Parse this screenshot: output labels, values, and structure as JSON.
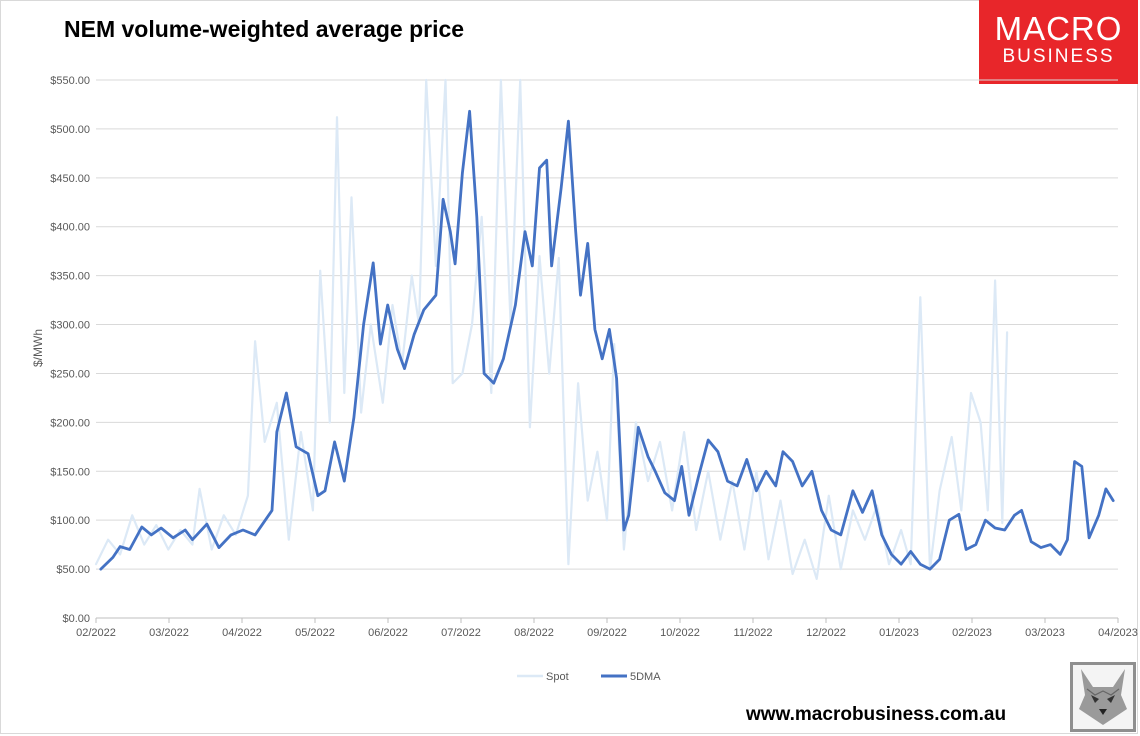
{
  "header": {
    "title": "NEM volume-weighted average price"
  },
  "logo": {
    "line1": "MACRO",
    "line2": "BUSINESS"
  },
  "footer": {
    "website": "www.macrobusiness.com.au",
    "emblem_icon": "wolf-head-icon"
  },
  "chart_data": {
    "type": "line",
    "title": "NEM volume-weighted average price",
    "ylabel": "$/MWh",
    "xlabel": "",
    "ylim": [
      0,
      550
    ],
    "yticks": [
      0,
      50,
      100,
      150,
      200,
      250,
      300,
      350,
      400,
      450,
      500,
      550
    ],
    "ytick_labels": [
      "$0.00",
      "$50.00",
      "$100.00",
      "$150.00",
      "$200.00",
      "$250.00",
      "$300.00",
      "$350.00",
      "$400.00",
      "$450.00",
      "$500.00",
      "$550.00"
    ],
    "xlim": [
      "2022-02-01",
      "2023-04-01"
    ],
    "xtick_labels": [
      "02/2022",
      "03/2022",
      "04/2022",
      "05/2022",
      "06/2022",
      "07/2022",
      "08/2022",
      "09/2022",
      "10/2022",
      "11/2022",
      "12/2022",
      "01/2023",
      "02/2023",
      "03/2023",
      "04/2023"
    ],
    "grid": true,
    "legend_position": "bottom",
    "colors": {
      "Spot": "#dce9f6",
      "5DMA": "#4472c4"
    },
    "series": [
      {
        "name": "Spot",
        "points": [
          [
            "2022-02-01",
            55
          ],
          [
            "2022-02-06",
            80
          ],
          [
            "2022-02-11",
            65
          ],
          [
            "2022-02-16",
            105
          ],
          [
            "2022-02-21",
            75
          ],
          [
            "2022-02-26",
            95
          ],
          [
            "2022-03-03",
            70
          ],
          [
            "2022-03-08",
            90
          ],
          [
            "2022-03-13",
            75
          ],
          [
            "2022-03-16",
            132
          ],
          [
            "2022-03-21",
            70
          ],
          [
            "2022-03-26",
            105
          ],
          [
            "2022-03-31",
            85
          ],
          [
            "2022-04-05",
            125
          ],
          [
            "2022-04-08",
            283
          ],
          [
            "2022-04-12",
            180
          ],
          [
            "2022-04-17",
            220
          ],
          [
            "2022-04-22",
            80
          ],
          [
            "2022-04-27",
            190
          ],
          [
            "2022-05-02",
            110
          ],
          [
            "2022-05-05",
            355
          ],
          [
            "2022-05-09",
            200
          ],
          [
            "2022-05-12",
            512
          ],
          [
            "2022-05-15",
            230
          ],
          [
            "2022-05-18",
            430
          ],
          [
            "2022-05-22",
            210
          ],
          [
            "2022-05-26",
            300
          ],
          [
            "2022-05-31",
            220
          ],
          [
            "2022-06-04",
            320
          ],
          [
            "2022-06-08",
            260
          ],
          [
            "2022-06-12",
            350
          ],
          [
            "2022-06-15",
            300
          ],
          [
            "2022-06-18",
            550
          ],
          [
            "2022-06-22",
            360
          ],
          [
            "2022-06-26",
            550
          ],
          [
            "2022-06-29",
            240
          ],
          [
            "2022-07-03",
            250
          ],
          [
            "2022-07-07",
            300
          ],
          [
            "2022-07-11",
            410
          ],
          [
            "2022-07-15",
            230
          ],
          [
            "2022-07-19",
            550
          ],
          [
            "2022-07-23",
            300
          ],
          [
            "2022-07-27",
            550
          ],
          [
            "2022-07-31",
            195
          ],
          [
            "2022-08-04",
            370
          ],
          [
            "2022-08-08",
            250
          ],
          [
            "2022-08-12",
            368
          ],
          [
            "2022-08-16",
            55
          ],
          [
            "2022-08-20",
            240
          ],
          [
            "2022-08-24",
            120
          ],
          [
            "2022-08-28",
            170
          ],
          [
            "2022-09-01",
            100
          ],
          [
            "2022-09-04",
            280
          ],
          [
            "2022-09-08",
            70
          ],
          [
            "2022-09-13",
            200
          ],
          [
            "2022-09-18",
            140
          ],
          [
            "2022-09-23",
            180
          ],
          [
            "2022-09-28",
            110
          ],
          [
            "2022-10-03",
            190
          ],
          [
            "2022-10-08",
            90
          ],
          [
            "2022-10-13",
            150
          ],
          [
            "2022-10-18",
            80
          ],
          [
            "2022-10-23",
            140
          ],
          [
            "2022-10-28",
            70
          ],
          [
            "2022-11-02",
            150
          ],
          [
            "2022-11-07",
            60
          ],
          [
            "2022-11-12",
            120
          ],
          [
            "2022-11-17",
            45
          ],
          [
            "2022-11-22",
            80
          ],
          [
            "2022-11-27",
            40
          ],
          [
            "2022-12-02",
            125
          ],
          [
            "2022-12-07",
            50
          ],
          [
            "2022-12-12",
            110
          ],
          [
            "2022-12-17",
            80
          ],
          [
            "2022-12-22",
            115
          ],
          [
            "2022-12-27",
            55
          ],
          [
            "2023-01-01",
            90
          ],
          [
            "2023-01-05",
            55
          ],
          [
            "2023-01-09",
            328
          ],
          [
            "2023-01-13",
            50
          ],
          [
            "2023-01-17",
            130
          ],
          [
            "2023-01-22",
            185
          ],
          [
            "2023-01-26",
            110
          ],
          [
            "2023-01-30",
            230
          ],
          [
            "2023-02-03",
            200
          ],
          [
            "2023-02-06",
            110
          ],
          [
            "2023-02-09",
            345
          ],
          [
            "2023-02-12",
            97
          ],
          [
            "2023-02-14",
            292
          ]
        ]
      },
      {
        "name": "5DMA",
        "points": [
          [
            "2022-02-03",
            50
          ],
          [
            "2022-02-08",
            62
          ],
          [
            "2022-02-11",
            73
          ],
          [
            "2022-02-15",
            70
          ],
          [
            "2022-02-20",
            93
          ],
          [
            "2022-02-24",
            85
          ],
          [
            "2022-02-28",
            92
          ],
          [
            "2022-03-05",
            82
          ],
          [
            "2022-03-10",
            90
          ],
          [
            "2022-03-13",
            80
          ],
          [
            "2022-03-19",
            96
          ],
          [
            "2022-03-24",
            72
          ],
          [
            "2022-03-29",
            85
          ],
          [
            "2022-04-03",
            90
          ],
          [
            "2022-04-08",
            85
          ],
          [
            "2022-04-15",
            110
          ],
          [
            "2022-04-17",
            190
          ],
          [
            "2022-04-21",
            230
          ],
          [
            "2022-04-25",
            175
          ],
          [
            "2022-04-30",
            168
          ],
          [
            "2022-05-04",
            125
          ],
          [
            "2022-05-07",
            130
          ],
          [
            "2022-05-11",
            180
          ],
          [
            "2022-05-15",
            140
          ],
          [
            "2022-05-19",
            205
          ],
          [
            "2022-05-23",
            300
          ],
          [
            "2022-05-27",
            363
          ],
          [
            "2022-05-30",
            280
          ],
          [
            "2022-06-02",
            320
          ],
          [
            "2022-06-06",
            275
          ],
          [
            "2022-06-09",
            255
          ],
          [
            "2022-06-13",
            290
          ],
          [
            "2022-06-17",
            315
          ],
          [
            "2022-06-22",
            330
          ],
          [
            "2022-06-25",
            428
          ],
          [
            "2022-06-28",
            395
          ],
          [
            "2022-06-30",
            362
          ],
          [
            "2022-07-03",
            455
          ],
          [
            "2022-07-06",
            518
          ],
          [
            "2022-07-09",
            410
          ],
          [
            "2022-07-12",
            250
          ],
          [
            "2022-07-16",
            240
          ],
          [
            "2022-07-20",
            265
          ],
          [
            "2022-07-25",
            320
          ],
          [
            "2022-07-29",
            395
          ],
          [
            "2022-08-01",
            360
          ],
          [
            "2022-08-04",
            460
          ],
          [
            "2022-08-07",
            468
          ],
          [
            "2022-08-09",
            360
          ],
          [
            "2022-08-13",
            440
          ],
          [
            "2022-08-16",
            508
          ],
          [
            "2022-08-19",
            395
          ],
          [
            "2022-08-21",
            330
          ],
          [
            "2022-08-24",
            383
          ],
          [
            "2022-08-27",
            295
          ],
          [
            "2022-08-30",
            265
          ],
          [
            "2022-09-02",
            295
          ],
          [
            "2022-09-05",
            245
          ],
          [
            "2022-09-08",
            90
          ],
          [
            "2022-09-10",
            105
          ],
          [
            "2022-09-14",
            195
          ],
          [
            "2022-09-18",
            165
          ],
          [
            "2022-09-21",
            150
          ],
          [
            "2022-09-25",
            128
          ],
          [
            "2022-09-29",
            120
          ],
          [
            "2022-10-02",
            155
          ],
          [
            "2022-10-05",
            105
          ],
          [
            "2022-10-09",
            145
          ],
          [
            "2022-10-13",
            182
          ],
          [
            "2022-10-17",
            170
          ],
          [
            "2022-10-21",
            140
          ],
          [
            "2022-10-25",
            135
          ],
          [
            "2022-10-29",
            162
          ],
          [
            "2022-11-02",
            130
          ],
          [
            "2022-11-06",
            150
          ],
          [
            "2022-11-10",
            135
          ],
          [
            "2022-11-13",
            170
          ],
          [
            "2022-11-17",
            160
          ],
          [
            "2022-11-21",
            135
          ],
          [
            "2022-11-25",
            150
          ],
          [
            "2022-11-29",
            110
          ],
          [
            "2022-12-03",
            90
          ],
          [
            "2022-12-07",
            85
          ],
          [
            "2022-12-12",
            130
          ],
          [
            "2022-12-16",
            108
          ],
          [
            "2022-12-20",
            130
          ],
          [
            "2022-12-24",
            85
          ],
          [
            "2022-12-28",
            65
          ],
          [
            "2023-01-01",
            55
          ],
          [
            "2023-01-05",
            68
          ],
          [
            "2023-01-09",
            55
          ],
          [
            "2023-01-13",
            50
          ],
          [
            "2023-01-17",
            60
          ],
          [
            "2023-01-21",
            100
          ],
          [
            "2023-01-25",
            106
          ],
          [
            "2023-01-28",
            70
          ],
          [
            "2023-02-01",
            75
          ],
          [
            "2023-02-05",
            100
          ],
          [
            "2023-02-09",
            92
          ],
          [
            "2023-02-13",
            90
          ],
          [
            "2023-02-17",
            105
          ],
          [
            "2023-02-20",
            110
          ],
          [
            "2023-02-24",
            78
          ],
          [
            "2023-02-28",
            72
          ],
          [
            "2023-03-04",
            75
          ],
          [
            "2023-03-08",
            65
          ],
          [
            "2023-03-11",
            80
          ],
          [
            "2023-03-14",
            160
          ],
          [
            "2023-03-17",
            155
          ],
          [
            "2023-03-20",
            82
          ],
          [
            "2023-03-24",
            105
          ],
          [
            "2023-03-27",
            132
          ],
          [
            "2023-03-30",
            120
          ]
        ]
      }
    ]
  }
}
